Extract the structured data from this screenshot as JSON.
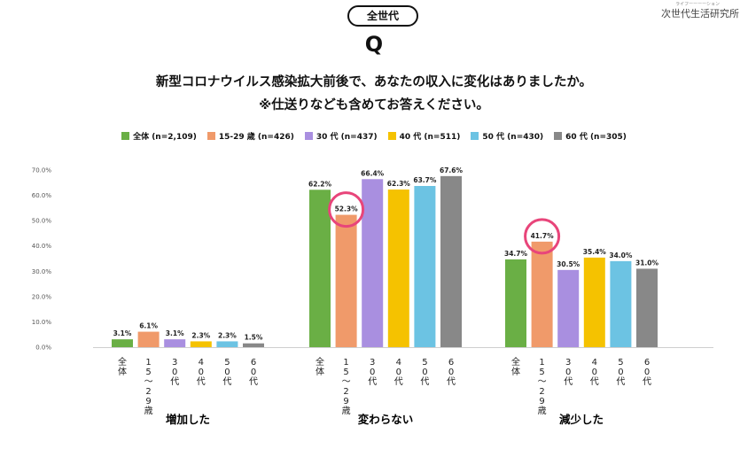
{
  "header": {
    "badge": "全世代",
    "q_mark": "Q",
    "brand": "次世代生活研究所",
    "brand_ruby": "ライフーーーーション",
    "question_line1": "新型コロナウイルス感染拡大前後で、あなたの収入に変化はありましたか。",
    "question_line2": "※仕送りなども含めてお答えください。"
  },
  "chart_data": {
    "type": "bar",
    "categories": [
      "増加した",
      "変わらない",
      "減少した"
    ],
    "series": [
      {
        "name": "全体 (n=2,109)",
        "short_label": "全体",
        "color": "#6aaf45",
        "values": [
          3.1,
          62.2,
          34.7
        ]
      },
      {
        "name": "15-29 歳 (n=426)",
        "short_label": "15~29歳",
        "color": "#f09a6a",
        "values": [
          6.1,
          52.3,
          41.7
        ]
      },
      {
        "name": "30 代 (n=437)",
        "short_label": "30代",
        "color": "#a98fe0",
        "values": [
          3.1,
          66.4,
          30.5
        ]
      },
      {
        "name": "40 代 (n=511)",
        "short_label": "40代",
        "color": "#f5c200",
        "values": [
          2.3,
          62.3,
          35.4
        ]
      },
      {
        "name": "50 代 (n=430)",
        "short_label": "50代",
        "color": "#6cc3e3",
        "values": [
          2.3,
          63.7,
          34.0
        ]
      },
      {
        "name": "60 代 (n=305)",
        "short_label": "60代",
        "color": "#888888",
        "values": [
          1.5,
          67.6,
          31.0
        ]
      }
    ],
    "yticks": [
      "0.0%",
      "10.0%",
      "20.0%",
      "30.0%",
      "40.0%",
      "50.0%",
      "60.0%",
      "70.0%"
    ],
    "ylim": [
      0,
      70
    ],
    "value_suffix": "%",
    "highlight_color": "#e8457a",
    "highlights": [
      {
        "category_index": 1,
        "series_index": 1
      },
      {
        "category_index": 2,
        "series_index": 1
      }
    ],
    "grid": false,
    "legend_position": "top"
  }
}
